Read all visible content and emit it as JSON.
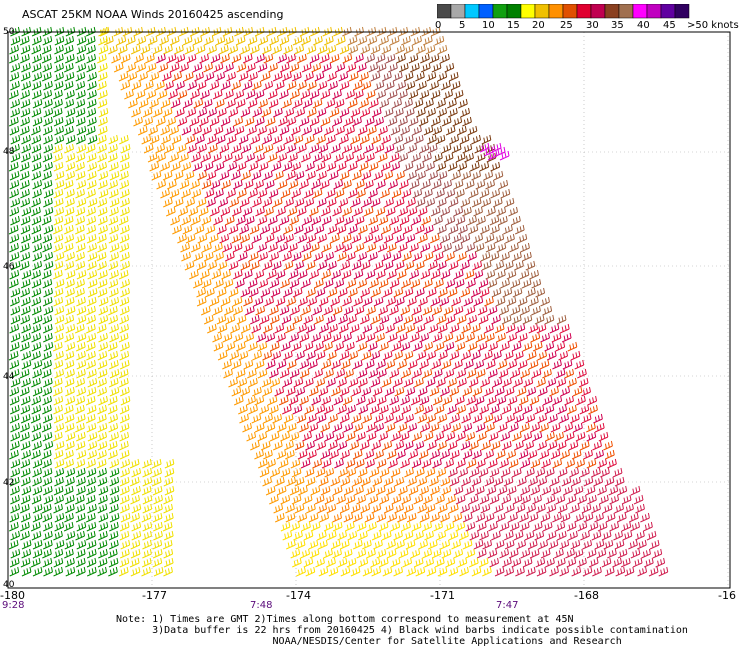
{
  "title": "ASCAT 25KM NOAA Winds 20160425 ascending",
  "scale": {
    "colors": [
      "#4a4a4a",
      "#a8a8a8",
      "#00c8ff",
      "#0060ff",
      "#10a010",
      "#008000",
      "#ffff00",
      "#f0c000",
      "#ff9000",
      "#e05000",
      "#e00030",
      "#c00050",
      "#8a4020",
      "#a07050",
      "#ff00ff",
      "#c000c0",
      "#6000a0",
      "#300060"
    ],
    "labels": [
      "0",
      "5",
      "10",
      "15",
      "20",
      "25",
      "30",
      "35",
      "40",
      "45",
      ">50 knots"
    ]
  },
  "axes": {
    "lat_labels": [
      "50",
      "48",
      "46",
      "44",
      "42",
      "40"
    ],
    "lon_labels": [
      "-180",
      "-177",
      "-174",
      "-171",
      "-168",
      "-16"
    ],
    "time_labels": [
      "9:28",
      "7:48",
      "7:47"
    ]
  },
  "notes": {
    "line1": "Note: 1) Times are GMT 2)Times along bottom correspond to measurement at 45N",
    "line2": "      3)Data buffer is 22 hrs from 20160425 4) Black wind barbs indicate possible contamination",
    "line3": "                          NOAA/NESDIS/Center for Satellite Applications and Research"
  }
}
